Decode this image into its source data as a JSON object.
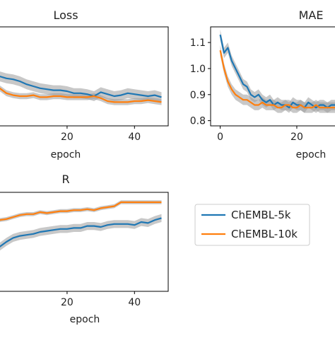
{
  "chart_data": [
    {
      "type": "line",
      "title": "Loss",
      "xlabel": "epoch",
      "ylabel": "",
      "xlim": [
        -2,
        50
      ],
      "ylim": [
        0,
        1
      ],
      "xticks": [
        20,
        40
      ],
      "yticks": [],
      "series": [
        {
          "name": "ChEMBL-5k",
          "color": "#1f77b4",
          "x": [
            0,
            2,
            4,
            6,
            8,
            10,
            12,
            14,
            16,
            18,
            20,
            22,
            24,
            26,
            28,
            30,
            32,
            34,
            36,
            38,
            40,
            42,
            44,
            46,
            48
          ],
          "y": [
            0.5,
            0.48,
            0.47,
            0.45,
            0.42,
            0.4,
            0.38,
            0.37,
            0.36,
            0.36,
            0.35,
            0.33,
            0.33,
            0.32,
            0.3,
            0.34,
            0.32,
            0.3,
            0.31,
            0.33,
            0.32,
            0.31,
            0.3,
            0.31,
            0.29
          ],
          "y_lo": [
            0.45,
            0.43,
            0.42,
            0.4,
            0.37,
            0.35,
            0.33,
            0.32,
            0.31,
            0.31,
            0.3,
            0.28,
            0.28,
            0.27,
            0.25,
            0.29,
            0.27,
            0.25,
            0.26,
            0.28,
            0.27,
            0.26,
            0.25,
            0.26,
            0.24
          ],
          "y_hi": [
            0.55,
            0.53,
            0.52,
            0.5,
            0.47,
            0.45,
            0.43,
            0.42,
            0.41,
            0.41,
            0.4,
            0.38,
            0.38,
            0.37,
            0.35,
            0.39,
            0.37,
            0.35,
            0.36,
            0.38,
            0.37,
            0.36,
            0.35,
            0.36,
            0.34
          ]
        },
        {
          "name": "ChEMBL-10k",
          "color": "#ff7f0e",
          "x": [
            0,
            2,
            4,
            6,
            8,
            10,
            12,
            14,
            16,
            18,
            20,
            22,
            24,
            26,
            28,
            30,
            32,
            34,
            36,
            38,
            40,
            42,
            44,
            46,
            48
          ],
          "y": [
            0.38,
            0.33,
            0.31,
            0.3,
            0.3,
            0.31,
            0.29,
            0.29,
            0.3,
            0.3,
            0.29,
            0.29,
            0.29,
            0.29,
            0.3,
            0.28,
            0.25,
            0.24,
            0.24,
            0.24,
            0.25,
            0.25,
            0.26,
            0.25,
            0.24
          ],
          "y_lo": [
            0.35,
            0.3,
            0.28,
            0.27,
            0.27,
            0.28,
            0.26,
            0.26,
            0.27,
            0.27,
            0.26,
            0.26,
            0.26,
            0.26,
            0.27,
            0.25,
            0.22,
            0.21,
            0.21,
            0.21,
            0.22,
            0.22,
            0.23,
            0.22,
            0.21
          ],
          "y_hi": [
            0.41,
            0.36,
            0.34,
            0.33,
            0.33,
            0.34,
            0.32,
            0.32,
            0.33,
            0.33,
            0.32,
            0.32,
            0.32,
            0.32,
            0.33,
            0.31,
            0.28,
            0.27,
            0.27,
            0.27,
            0.28,
            0.28,
            0.29,
            0.28,
            0.27
          ]
        }
      ]
    },
    {
      "type": "line",
      "title": "MAE",
      "xlabel": "epoch",
      "ylabel": "",
      "xlim": [
        -2.5,
        32
      ],
      "ylim": [
        0.78,
        1.16
      ],
      "xticks": [
        0,
        20
      ],
      "yticks": [
        0.8,
        0.9,
        1.0,
        1.1
      ],
      "series": [
        {
          "name": "ChEMBL-5k",
          "color": "#1f77b4",
          "x": [
            0,
            1,
            2,
            3,
            4,
            5,
            6,
            7,
            8,
            9,
            10,
            11,
            12,
            13,
            14,
            15,
            16,
            17,
            18,
            19,
            20,
            21,
            22,
            23,
            24,
            25,
            26,
            27,
            28,
            29,
            30,
            31
          ],
          "y": [
            1.13,
            1.06,
            1.08,
            1.03,
            1.0,
            0.97,
            0.94,
            0.93,
            0.9,
            0.89,
            0.9,
            0.88,
            0.87,
            0.88,
            0.86,
            0.87,
            0.86,
            0.86,
            0.85,
            0.87,
            0.86,
            0.86,
            0.85,
            0.87,
            0.86,
            0.85,
            0.86,
            0.86,
            0.85,
            0.86,
            0.86,
            0.85
          ],
          "y_lo": [
            1.11,
            1.04,
            1.06,
            1.01,
            0.98,
            0.95,
            0.92,
            0.91,
            0.88,
            0.87,
            0.88,
            0.86,
            0.85,
            0.86,
            0.84,
            0.85,
            0.84,
            0.84,
            0.83,
            0.85,
            0.84,
            0.84,
            0.83,
            0.85,
            0.84,
            0.83,
            0.84,
            0.84,
            0.83,
            0.84,
            0.84,
            0.83
          ],
          "y_hi": [
            1.15,
            1.08,
            1.1,
            1.05,
            1.02,
            0.99,
            0.96,
            0.95,
            0.92,
            0.91,
            0.92,
            0.9,
            0.89,
            0.9,
            0.88,
            0.89,
            0.88,
            0.88,
            0.87,
            0.89,
            0.88,
            0.88,
            0.87,
            0.89,
            0.88,
            0.87,
            0.88,
            0.88,
            0.87,
            0.88,
            0.88,
            0.87
          ]
        },
        {
          "name": "ChEMBL-10k",
          "color": "#ff7f0e",
          "x": [
            0,
            1,
            2,
            3,
            4,
            5,
            6,
            7,
            8,
            9,
            10,
            11,
            12,
            13,
            14,
            15,
            16,
            17,
            18,
            19,
            20,
            21,
            22,
            23,
            24,
            25,
            26,
            27,
            28,
            29,
            30,
            31
          ],
          "y": [
            1.07,
            1.0,
            0.95,
            0.92,
            0.9,
            0.89,
            0.88,
            0.88,
            0.87,
            0.86,
            0.86,
            0.87,
            0.86,
            0.86,
            0.86,
            0.85,
            0.85,
            0.86,
            0.86,
            0.85,
            0.85,
            0.86,
            0.85,
            0.85,
            0.85,
            0.86,
            0.85,
            0.85,
            0.85,
            0.85,
            0.85,
            0.85
          ],
          "y_lo": [
            1.05,
            0.98,
            0.93,
            0.9,
            0.88,
            0.87,
            0.86,
            0.86,
            0.85,
            0.84,
            0.84,
            0.85,
            0.84,
            0.84,
            0.84,
            0.83,
            0.83,
            0.84,
            0.84,
            0.83,
            0.83,
            0.84,
            0.83,
            0.83,
            0.83,
            0.84,
            0.83,
            0.83,
            0.83,
            0.83,
            0.83,
            0.83
          ],
          "y_hi": [
            1.09,
            1.02,
            0.97,
            0.94,
            0.92,
            0.91,
            0.9,
            0.9,
            0.89,
            0.88,
            0.88,
            0.89,
            0.88,
            0.88,
            0.88,
            0.87,
            0.87,
            0.88,
            0.88,
            0.87,
            0.87,
            0.88,
            0.87,
            0.87,
            0.87,
            0.88,
            0.87,
            0.87,
            0.87,
            0.87,
            0.87,
            0.87
          ]
        }
      ]
    },
    {
      "type": "line",
      "title": "R",
      "xlabel": "epoch",
      "ylabel": "",
      "xlim": [
        -2,
        50
      ],
      "ylim": [
        0,
        1
      ],
      "xticks": [
        20,
        40
      ],
      "yticks": [],
      "series": [
        {
          "name": "ChEMBL-5k",
          "color": "#1f77b4",
          "x": [
            0,
            2,
            4,
            6,
            8,
            10,
            12,
            14,
            16,
            18,
            20,
            22,
            24,
            26,
            28,
            30,
            32,
            34,
            36,
            38,
            40,
            42,
            44,
            46,
            48
          ],
          "y": [
            0.45,
            0.5,
            0.54,
            0.56,
            0.57,
            0.58,
            0.6,
            0.61,
            0.62,
            0.63,
            0.63,
            0.64,
            0.64,
            0.66,
            0.66,
            0.65,
            0.67,
            0.68,
            0.68,
            0.68,
            0.67,
            0.7,
            0.69,
            0.72,
            0.74
          ],
          "y_lo": [
            0.41,
            0.46,
            0.5,
            0.52,
            0.53,
            0.54,
            0.56,
            0.57,
            0.58,
            0.59,
            0.59,
            0.6,
            0.6,
            0.62,
            0.62,
            0.61,
            0.63,
            0.64,
            0.64,
            0.64,
            0.63,
            0.66,
            0.65,
            0.68,
            0.7
          ],
          "y_hi": [
            0.49,
            0.54,
            0.58,
            0.6,
            0.61,
            0.62,
            0.64,
            0.65,
            0.66,
            0.67,
            0.67,
            0.68,
            0.68,
            0.7,
            0.7,
            0.69,
            0.71,
            0.72,
            0.72,
            0.72,
            0.71,
            0.74,
            0.73,
            0.76,
            0.78
          ]
        },
        {
          "name": "ChEMBL-10k",
          "color": "#ff7f0e",
          "x": [
            0,
            2,
            4,
            6,
            8,
            10,
            12,
            14,
            16,
            18,
            20,
            22,
            24,
            26,
            28,
            30,
            32,
            34,
            36,
            38,
            40,
            42,
            44,
            46,
            48
          ],
          "y": [
            0.72,
            0.73,
            0.75,
            0.77,
            0.78,
            0.78,
            0.8,
            0.79,
            0.8,
            0.81,
            0.81,
            0.82,
            0.82,
            0.83,
            0.82,
            0.84,
            0.85,
            0.86,
            0.9,
            0.9,
            0.9,
            0.9,
            0.9,
            0.9,
            0.9
          ],
          "y_lo": [
            0.7,
            0.71,
            0.73,
            0.75,
            0.76,
            0.76,
            0.78,
            0.77,
            0.78,
            0.79,
            0.79,
            0.8,
            0.8,
            0.81,
            0.8,
            0.82,
            0.83,
            0.84,
            0.88,
            0.88,
            0.88,
            0.88,
            0.88,
            0.88,
            0.88
          ],
          "y_hi": [
            0.74,
            0.75,
            0.77,
            0.79,
            0.8,
            0.8,
            0.82,
            0.81,
            0.82,
            0.83,
            0.83,
            0.84,
            0.84,
            0.85,
            0.84,
            0.86,
            0.87,
            0.88,
            0.92,
            0.92,
            0.92,
            0.92,
            0.92,
            0.92,
            0.92
          ]
        }
      ]
    }
  ],
  "legend": {
    "items": [
      {
        "label": "ChEMBL-5k",
        "color": "#1f77b4"
      },
      {
        "label": "ChEMBL-10k",
        "color": "#ff7f0e"
      }
    ]
  }
}
